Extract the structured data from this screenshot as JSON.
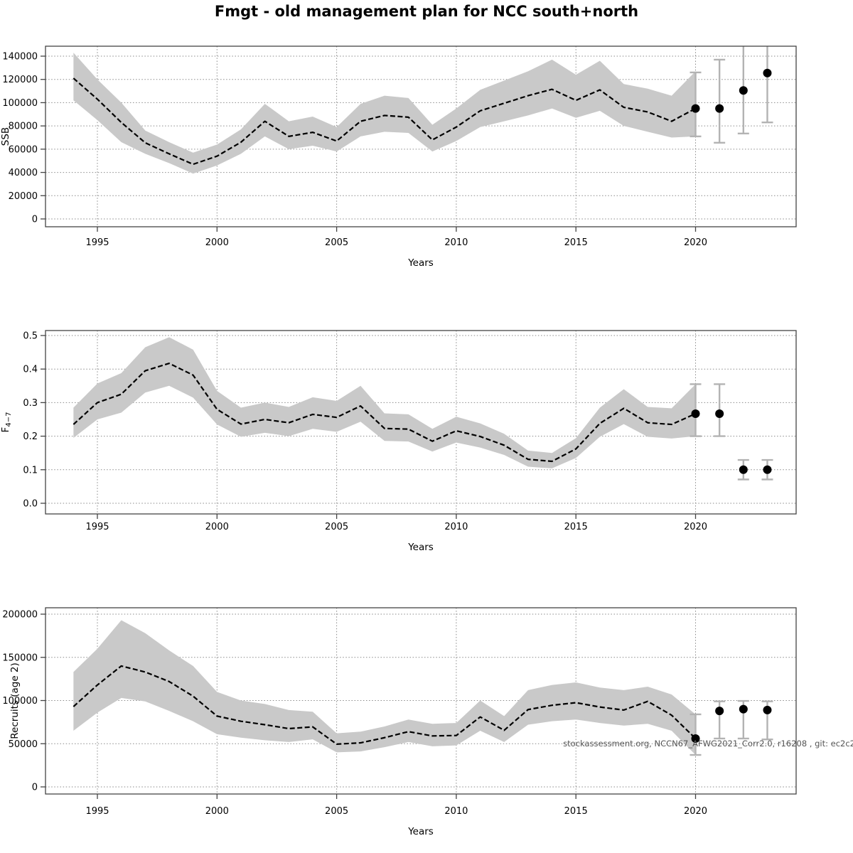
{
  "title": "Fmgt - old management plan for NCC south+north",
  "watermark": "stockassessment.org, NCCN67_AFWG2021_Corr2.0, r16208 , git: ec2c2",
  "colors": {
    "band": "#c9c9c9",
    "line": "#000000",
    "marker": "#000000",
    "error_bar": "#b3b3b3",
    "grid": "#8a8a8a",
    "frame": "#444444"
  },
  "chart_data": [
    {
      "type": "line",
      "ylabel": "SSB",
      "xlabel": "Years",
      "legend": "none",
      "grid": "dotted",
      "xlim": [
        1993,
        2024
      ],
      "ylim": [
        0,
        140000
      ],
      "x_ticks": [
        1995,
        2000,
        2005,
        2010,
        2015,
        2020
      ],
      "y_ticks": [
        "0",
        "20000",
        "40000",
        "60000",
        "80000",
        "100000",
        "120000",
        "140000"
      ],
      "years": [
        1994,
        1995,
        1996,
        1997,
        1998,
        1999,
        2000,
        2001,
        2002,
        2003,
        2004,
        2005,
        2006,
        2007,
        2008,
        2009,
        2010,
        2011,
        2012,
        2013,
        2014,
        2015,
        2016,
        2017,
        2018,
        2019,
        2020
      ],
      "values": [
        121000,
        103000,
        83000,
        65500,
        56000,
        47000,
        54000,
        66000,
        84000,
        71000,
        74500,
        67000,
        84000,
        89000,
        87500,
        68000,
        79000,
        93000,
        99500,
        106000,
        111500,
        102000,
        111000,
        96000,
        92000,
        84000,
        95000
      ],
      "band_lo": [
        102000,
        85000,
        66000,
        56000,
        48000,
        39000,
        46000,
        56000,
        71000,
        60000,
        63000,
        58000,
        71000,
        75000,
        74000,
        58000,
        67000,
        79000,
        84000,
        89000,
        95000,
        87000,
        93000,
        80000,
        75000,
        70000,
        71000
      ],
      "band_hi": [
        143000,
        120000,
        100000,
        76000,
        66000,
        57000,
        64000,
        77000,
        99000,
        84000,
        88000,
        79000,
        99000,
        106000,
        104000,
        81000,
        95000,
        111000,
        119000,
        127000,
        137000,
        124000,
        136000,
        116000,
        112000,
        106000,
        127000
      ],
      "forecast_years": [
        2020,
        2021,
        2022,
        2023
      ],
      "forecast_values": [
        95000,
        95000,
        110500,
        125500
      ],
      "forecast_lo": [
        71000,
        65500,
        73500,
        83000
      ],
      "forecast_hi": [
        126000,
        137000,
        152000,
        152000
      ]
    },
    {
      "type": "line",
      "ylabel": "F4-7",
      "ylabel_main": "F",
      "ylabel_sub": "4−7",
      "xlabel": "Years",
      "legend": "none",
      "grid": "dotted",
      "xlim": [
        1993,
        2024
      ],
      "ylim": [
        0,
        0.5
      ],
      "x_ticks": [
        1995,
        2000,
        2005,
        2010,
        2015,
        2020
      ],
      "y_ticks": [
        "0.0",
        "0.1",
        "0.2",
        "0.3",
        "0.4",
        "0.5"
      ],
      "years": [
        1994,
        1995,
        1996,
        1997,
        1998,
        1999,
        2000,
        2001,
        2002,
        2003,
        2004,
        2005,
        2006,
        2007,
        2008,
        2009,
        2010,
        2011,
        2012,
        2013,
        2014,
        2015,
        2016,
        2017,
        2018,
        2019,
        2020
      ],
      "values": [
        0.235,
        0.3,
        0.325,
        0.395,
        0.417,
        0.382,
        0.28,
        0.236,
        0.25,
        0.24,
        0.265,
        0.256,
        0.29,
        0.223,
        0.221,
        0.185,
        0.216,
        0.199,
        0.173,
        0.131,
        0.125,
        0.162,
        0.238,
        0.283,
        0.24,
        0.235,
        0.267
      ],
      "band_lo": [
        0.195,
        0.25,
        0.27,
        0.33,
        0.35,
        0.315,
        0.235,
        0.198,
        0.21,
        0.2,
        0.222,
        0.213,
        0.243,
        0.186,
        0.184,
        0.154,
        0.181,
        0.166,
        0.144,
        0.109,
        0.104,
        0.135,
        0.198,
        0.236,
        0.198,
        0.193,
        0.2
      ],
      "band_hi": [
        0.285,
        0.357,
        0.388,
        0.465,
        0.495,
        0.458,
        0.335,
        0.285,
        0.3,
        0.287,
        0.316,
        0.305,
        0.35,
        0.268,
        0.265,
        0.222,
        0.258,
        0.238,
        0.207,
        0.157,
        0.15,
        0.194,
        0.285,
        0.34,
        0.287,
        0.283,
        0.355
      ],
      "forecast_years": [
        2020,
        2021,
        2022,
        2023
      ],
      "forecast_values": [
        0.267,
        0.267,
        0.1,
        0.1
      ],
      "forecast_lo": [
        0.2,
        0.2,
        0.071,
        0.071
      ],
      "forecast_hi": [
        0.355,
        0.355,
        0.129,
        0.129
      ]
    },
    {
      "type": "line",
      "ylabel": "Recruits (age 2)",
      "xlabel": "Years",
      "legend": "none",
      "grid": "dotted",
      "xlim": [
        1993,
        2024
      ],
      "ylim": [
        0,
        200000
      ],
      "x_ticks": [
        1995,
        2000,
        2005,
        2010,
        2015,
        2020
      ],
      "y_ticks": [
        "0",
        "50000",
        "100000",
        "150000",
        "200000"
      ],
      "years": [
        1994,
        1995,
        1996,
        1997,
        1998,
        1999,
        2000,
        2001,
        2002,
        2003,
        2004,
        2005,
        2006,
        2007,
        2008,
        2009,
        2010,
        2011,
        2012,
        2013,
        2014,
        2015,
        2016,
        2017,
        2018,
        2019,
        2020
      ],
      "values": [
        93000,
        118000,
        140000,
        133000,
        122000,
        105000,
        82000,
        76000,
        72000,
        67500,
        69500,
        49500,
        51000,
        57000,
        64000,
        59000,
        59500,
        81000,
        65500,
        89500,
        94500,
        97500,
        92500,
        89000,
        99000,
        83000,
        56000
      ],
      "band_lo": [
        65000,
        86000,
        103000,
        99000,
        88000,
        76000,
        61000,
        57000,
        54000,
        52000,
        55000,
        40000,
        41000,
        46000,
        52000,
        47000,
        48000,
        65000,
        52000,
        72000,
        76000,
        78000,
        74000,
        71000,
        73000,
        65000,
        37000
      ],
      "band_hi": [
        133000,
        160000,
        193000,
        178000,
        158000,
        140000,
        110000,
        100000,
        96000,
        89000,
        87000,
        62000,
        64000,
        70000,
        78000,
        73000,
        74000,
        100000,
        82000,
        112000,
        118000,
        121000,
        115000,
        112000,
        116000,
        107000,
        84000
      ],
      "forecast_years": [
        2020,
        2021,
        2022,
        2023
      ],
      "forecast_values": [
        56000,
        88000,
        90000,
        89000
      ],
      "forecast_lo": [
        37000,
        56000,
        56000,
        55000
      ],
      "forecast_hi": [
        84000,
        99000,
        99500,
        99000
      ]
    }
  ]
}
